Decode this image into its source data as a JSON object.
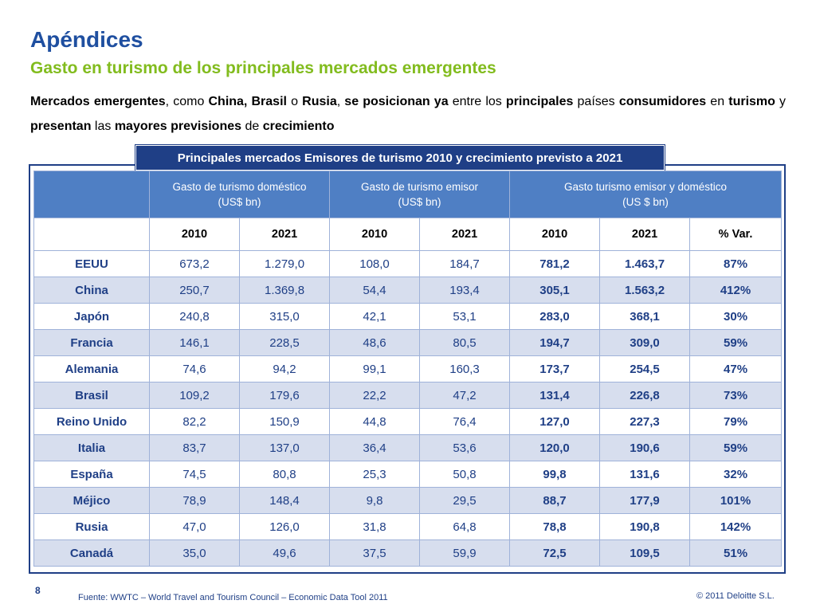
{
  "header": {
    "title": "Apéndices",
    "subtitle": "Gasto en turismo de los principales mercados emergentes"
  },
  "intro": {
    "p1": "Mercados emergentes",
    "p2": ", como ",
    "p3": "China, Brasil",
    "p4": " o ",
    "p5": "Rusia",
    "p6": ", ",
    "p7": "se posicionan ya",
    "p8": " entre los ",
    "p9": "principales",
    "p10": " países ",
    "p11": "consumidores",
    "p12": " en ",
    "p13": "turismo",
    "p14": " y ",
    "p15": "presentan",
    "p16": " las ",
    "p17": "mayores previsiones",
    "p18": " de ",
    "p19": "crecimiento"
  },
  "table": {
    "caption": "Principales mercados Emisores de turismo 2010 y crecimiento previsto a 2021",
    "groups": [
      {
        "line1": "Gasto de turismo doméstico",
        "line2": "(US$ bn)"
      },
      {
        "line1": "Gasto de turismo emisor",
        "line2": "(US$ bn)"
      },
      {
        "line1": "Gasto turismo emisor y doméstico",
        "line2": "(US $ bn)"
      }
    ],
    "years": [
      "2010",
      "2021",
      "2010",
      "2021",
      "2010",
      "2021",
      "% Var."
    ],
    "rows": [
      {
        "country": "EEUU",
        "v": [
          "673,2",
          "1.279,0",
          "108,0",
          "184,7",
          "781,2",
          "1.463,7",
          "87%"
        ]
      },
      {
        "country": "China",
        "v": [
          "250,7",
          "1.369,8",
          "54,4",
          "193,4",
          "305,1",
          "1.563,2",
          "412%"
        ]
      },
      {
        "country": "Japón",
        "v": [
          "240,8",
          "315,0",
          "42,1",
          "53,1",
          "283,0",
          "368,1",
          "30%"
        ]
      },
      {
        "country": "Francia",
        "v": [
          "146,1",
          "228,5",
          "48,6",
          "80,5",
          "194,7",
          "309,0",
          "59%"
        ]
      },
      {
        "country": "Alemania",
        "v": [
          "74,6",
          "94,2",
          "99,1",
          "160,3",
          "173,7",
          "254,5",
          "47%"
        ]
      },
      {
        "country": "Brasil",
        "v": [
          "109,2",
          "179,6",
          "22,2",
          "47,2",
          "131,4",
          "226,8",
          "73%"
        ]
      },
      {
        "country": "Reino Unido",
        "v": [
          "82,2",
          "150,9",
          "44,8",
          "76,4",
          "127,0",
          "227,3",
          "79%"
        ]
      },
      {
        "country": "Italia",
        "v": [
          "83,7",
          "137,0",
          "36,4",
          "53,6",
          "120,0",
          "190,6",
          "59%"
        ]
      },
      {
        "country": "España",
        "v": [
          "74,5",
          "80,8",
          "25,3",
          "50,8",
          "99,8",
          "131,6",
          "32%"
        ]
      },
      {
        "country": "Méjico",
        "v": [
          "78,9",
          "148,4",
          "9,8",
          "29,5",
          "88,7",
          "177,9",
          "101%"
        ]
      },
      {
        "country": "Rusia",
        "v": [
          "47,0",
          "126,0",
          "31,8",
          "64,8",
          "78,8",
          "190,8",
          "142%"
        ]
      },
      {
        "country": "Canadá",
        "v": [
          "35,0",
          "49,6",
          "37,5",
          "59,9",
          "72,5",
          "109,5",
          "51%"
        ]
      }
    ]
  },
  "footer": {
    "page_number": "8",
    "source": "Fuente: WWTC – World Travel and Tourism Council – Economic Data Tool 2011",
    "copyright": "© 2011 Deloitte S.L."
  },
  "colors": {
    "title_blue": "#1f4fa0",
    "subtitle_green": "#82bc1e",
    "header_blue": "#4f7fc4",
    "dark_blue": "#1f3f86",
    "stripe": "#d7deee"
  }
}
